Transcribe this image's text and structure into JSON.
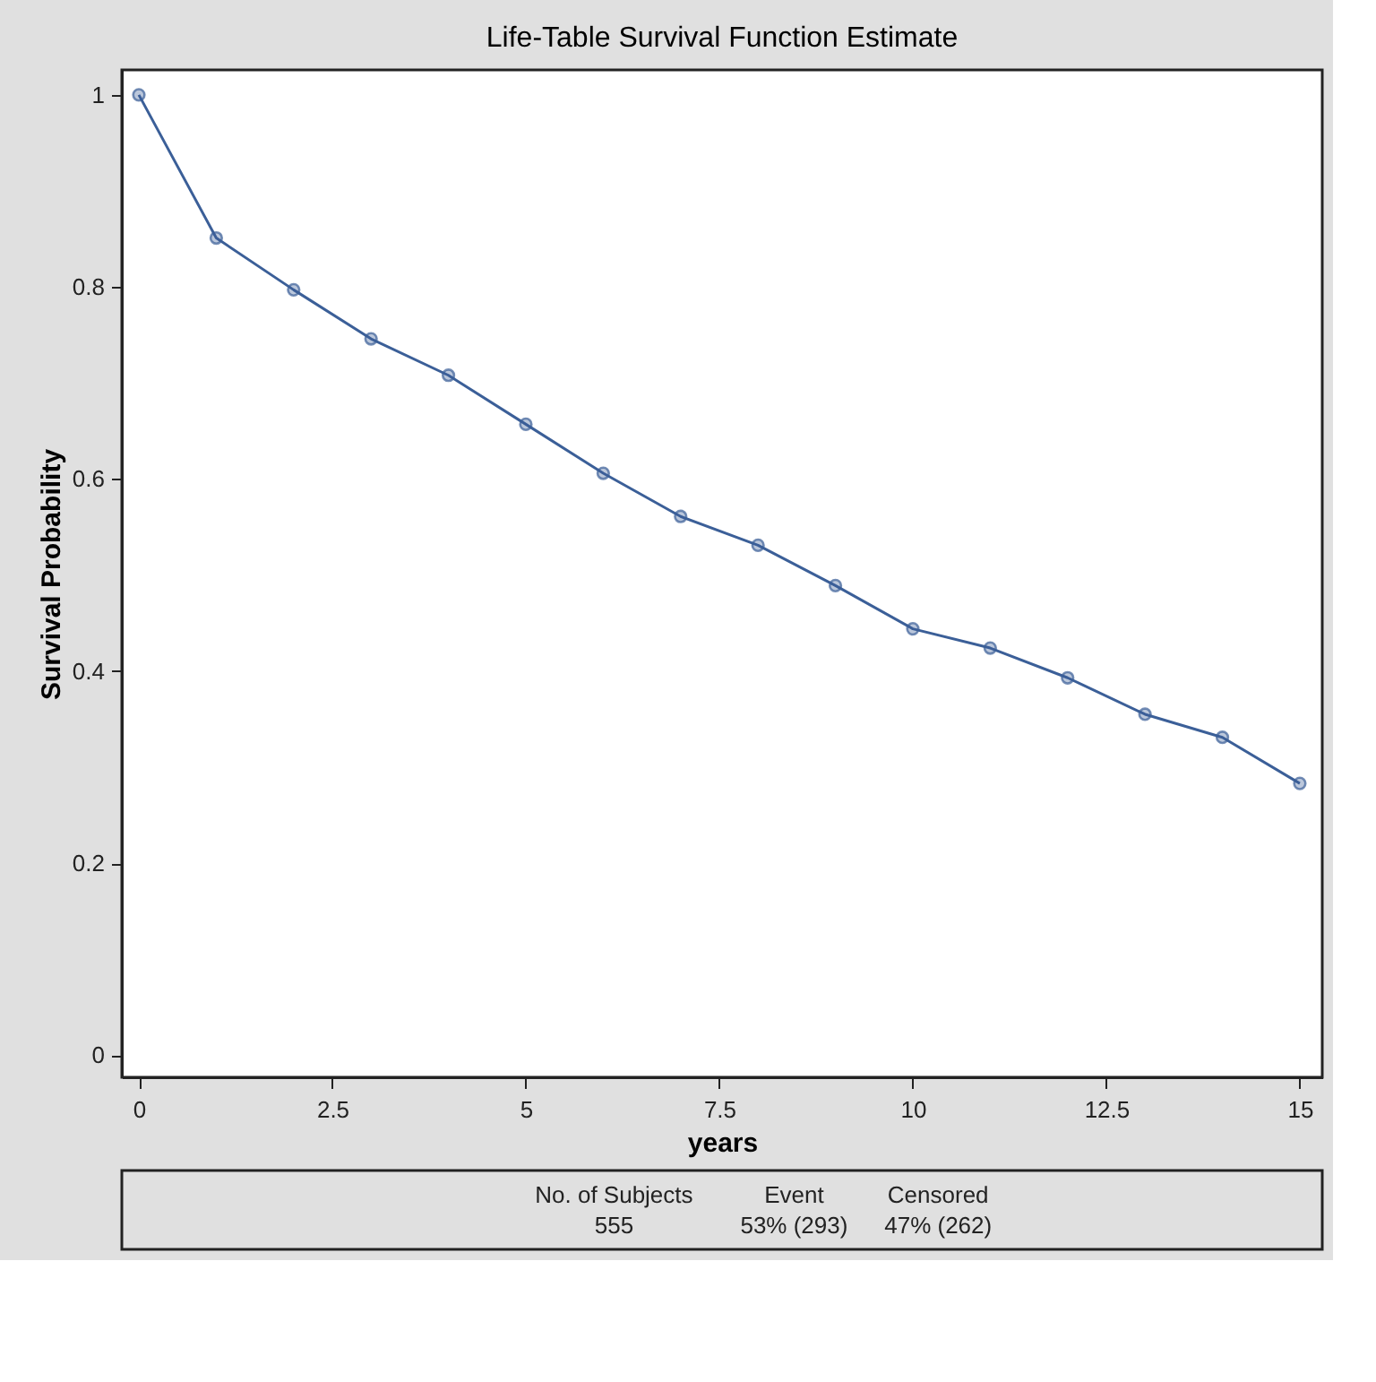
{
  "chart_data": {
    "type": "line",
    "title": "Life-Table Survival Function Estimate",
    "xlabel": "years",
    "ylabel": "Survival Probability",
    "x": [
      0,
      1,
      2,
      3,
      4,
      5,
      6,
      7,
      8,
      9,
      10,
      11,
      12,
      13,
      14,
      15
    ],
    "series": [
      {
        "color": "#3b5f98",
        "values": [
          1.0,
          0.851,
          0.797,
          0.746,
          0.708,
          0.657,
          0.606,
          0.561,
          0.531,
          0.489,
          0.444,
          0.424,
          0.393,
          0.355,
          0.331,
          0.283
        ]
      }
    ],
    "xlim": [
      -0.22,
      15.29
    ],
    "ylim": [
      -0.023,
      1.026
    ],
    "xticks": [
      0,
      2.5,
      5,
      7.5,
      10,
      12.5,
      15
    ],
    "yticks": [
      0,
      0.2,
      0.4,
      0.6,
      0.8,
      1
    ],
    "grid": false,
    "marker": "circle",
    "line_style": "solid",
    "annotations": [
      "No. of Subjects",
      "Event",
      "Censored",
      "555",
      "53% (293)",
      "47% (262)"
    ]
  }
}
